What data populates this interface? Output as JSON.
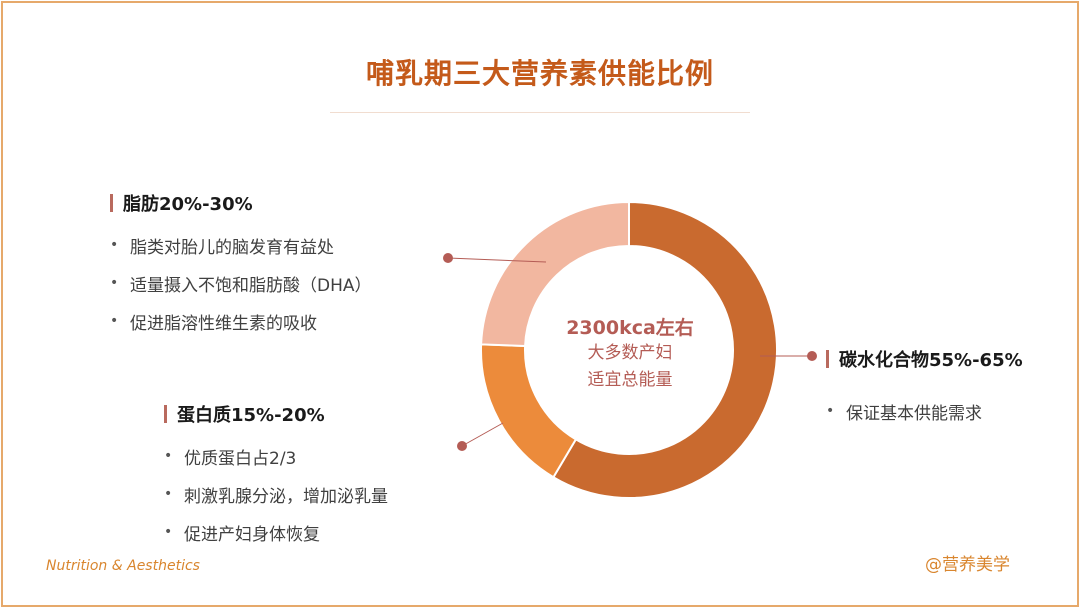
{
  "title": "哺乳期三大营养素供能比例",
  "chart_data": {
    "type": "pie",
    "categories": [
      "碳水化合物55%-65%",
      "蛋白质15%-20%",
      "脂肪20%-30%"
    ],
    "values": [
      60,
      17.5,
      25
    ],
    "colors": [
      "#c96a2f",
      "#ec8b3b",
      "#f2b7a0"
    ],
    "center_text": [
      "2300kca左右",
      "大多数产妇",
      "适宜总能量"
    ]
  },
  "sections": {
    "fat": {
      "heading": "脂肪20%-30%",
      "bullets": [
        "脂类对胎儿的脑发育有益处",
        "适量摄入不饱和脂肪酸（DHA）",
        "促进脂溶性维生素的吸收"
      ]
    },
    "protein": {
      "heading": "蛋白质15%-20%",
      "bullets": [
        "优质蛋白占2/3",
        "刺激乳腺分泌，增加泌乳量",
        "促进产妇身体恢复"
      ]
    },
    "carbs": {
      "heading": "碳水化合物55%-65%",
      "bullets": [
        "保证基本供能需求"
      ]
    }
  },
  "footer": {
    "left": "Nutrition & Aesthetics",
    "right": "@营养美学"
  },
  "colors": {
    "accent": "#c45a1a",
    "bar": "#b96a5e",
    "connector": "#b45c55"
  }
}
